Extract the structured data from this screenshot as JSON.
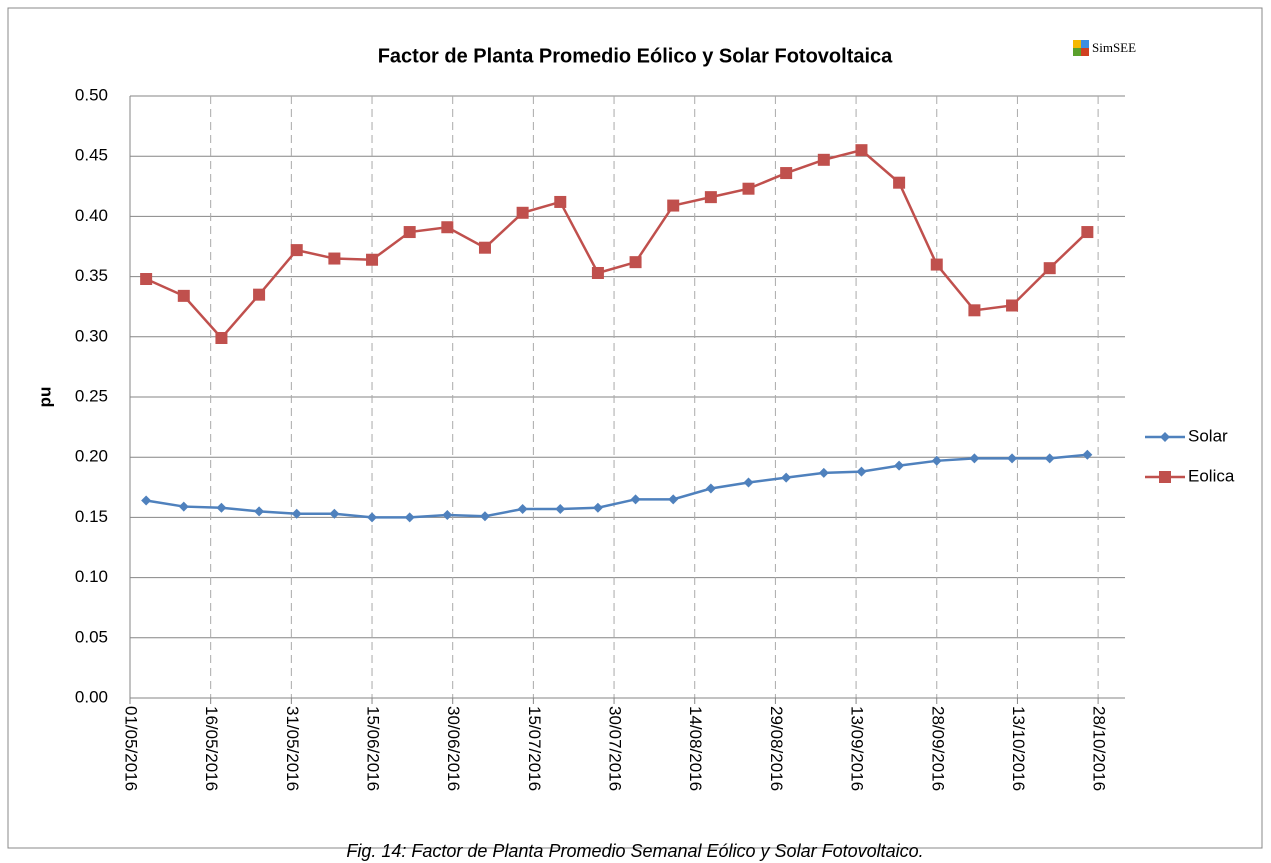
{
  "chart_data": {
    "type": "line",
    "title": "Factor de Planta Promedio Eólico y Solar Fotovoltaica",
    "logo": "SimSEE",
    "y_label": "pu",
    "caption": "Fig. 14: Factor de Planta Promedio Semanal Eólico y Solar Fotovoltaico.",
    "x": [
      "04/05/2016",
      "11/05/2016",
      "18/05/2016",
      "25/05/2016",
      "01/06/2016",
      "08/06/2016",
      "15/06/2016",
      "22/06/2016",
      "29/06/2016",
      "06/07/2016",
      "13/07/2016",
      "20/07/2016",
      "27/07/2016",
      "03/08/2016",
      "10/08/2016",
      "17/08/2016",
      "24/08/2016",
      "31/08/2016",
      "07/09/2016",
      "14/09/2016",
      "21/09/2016",
      "28/09/2016",
      "05/10/2016",
      "12/10/2016",
      "19/10/2016",
      "26/10/2016"
    ],
    "series": [
      {
        "name": "Solar",
        "color": "#4f81bd",
        "marker": "diamond",
        "values": [
          0.164,
          0.159,
          0.158,
          0.155,
          0.153,
          0.153,
          0.15,
          0.15,
          0.152,
          0.151,
          0.157,
          0.157,
          0.158,
          0.165,
          0.165,
          0.174,
          0.179,
          0.183,
          0.187,
          0.188,
          0.193,
          0.197,
          0.199,
          0.199,
          0.199,
          0.202
        ]
      },
      {
        "name": "Eolica",
        "color": "#c0504d",
        "marker": "square",
        "values": [
          0.348,
          0.334,
          0.299,
          0.335,
          0.372,
          0.365,
          0.364,
          0.387,
          0.391,
          0.374,
          0.403,
          0.412,
          0.353,
          0.362,
          0.409,
          0.416,
          0.423,
          0.436,
          0.447,
          0.455,
          0.428,
          0.36,
          0.322,
          0.326,
          0.357,
          0.387
        ]
      }
    ],
    "xlim": [
      "01/05/2016",
      "02/11/2016"
    ],
    "xticks": [
      "01/05/2016",
      "16/05/2016",
      "31/05/2016",
      "15/06/2016",
      "30/06/2016",
      "15/07/2016",
      "30/07/2016",
      "14/08/2016",
      "29/08/2016",
      "13/09/2016",
      "28/09/2016",
      "13/10/2016",
      "28/10/2016"
    ],
    "ylim": [
      0,
      0.5
    ],
    "yticks": [
      {
        "value": 0,
        "label": "0.00"
      },
      {
        "value": 0.05,
        "label": "0.05"
      },
      {
        "value": 0.1,
        "label": "0.10"
      },
      {
        "value": 0.15,
        "label": "0.15"
      },
      {
        "value": 0.2,
        "label": "0.20"
      },
      {
        "value": 0.25,
        "label": "0.25"
      },
      {
        "value": 0.3,
        "label": "0.30"
      },
      {
        "value": 0.35,
        "label": "0.35"
      },
      {
        "value": 0.4,
        "label": "0.40"
      },
      {
        "value": 0.45,
        "label": "0.45"
      },
      {
        "value": 0.5,
        "label": "0.50"
      }
    ],
    "grid": true,
    "legend": "right"
  }
}
